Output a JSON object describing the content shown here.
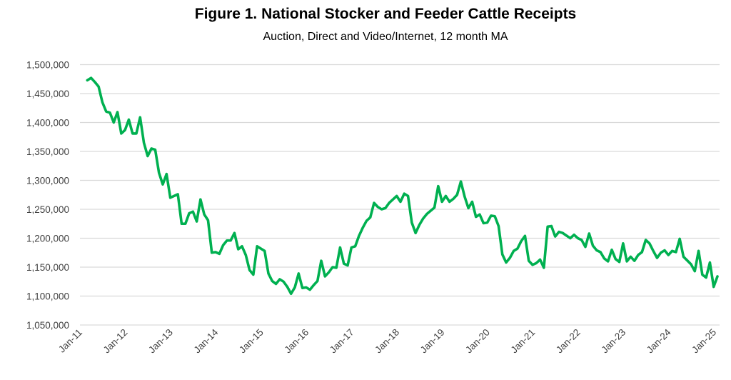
{
  "chart_data": {
    "type": "line",
    "title": "Figure 1. National Stocker and Feeder Cattle Receipts",
    "subtitle": "Auction, Direct and Video/Internet, 12 month MA",
    "xlabel": "",
    "ylabel": "",
    "ylim": [
      1050000,
      1500000
    ],
    "y_ticks": [
      "1,050,000",
      "1,100,000",
      "1,150,000",
      "1,200,000",
      "1,250,000",
      "1,300,000",
      "1,350,000",
      "1,400,000",
      "1,450,000",
      "1,500,000"
    ],
    "x_ticks": [
      "Jan-11",
      "Jan-12",
      "Jan-13",
      "Jan-14",
      "Jan-15",
      "Jan-16",
      "Jan-17",
      "Jan-18",
      "Jan-19",
      "Jan-20",
      "Jan-21",
      "Jan-22",
      "Jan-23",
      "Jan-24",
      "Jan-25"
    ],
    "xlim": [
      "2011-01",
      "2025-01"
    ],
    "grid": "horizontal",
    "legend": "none",
    "line_color": "#00b050",
    "series": [
      {
        "dates": [
          "2011-02",
          "2011-03",
          "2011-04",
          "2011-05",
          "2011-06",
          "2011-07",
          "2011-08",
          "2011-09",
          "2011-10",
          "2011-11",
          "2011-12",
          "2012-01",
          "2012-02",
          "2012-03",
          "2012-04",
          "2012-05",
          "2012-06",
          "2012-07",
          "2012-08",
          "2012-09",
          "2012-10",
          "2012-11",
          "2012-12",
          "2013-02",
          "2013-03",
          "2013-04",
          "2013-05",
          "2013-06",
          "2013-07",
          "2013-08",
          "2013-09",
          "2013-10",
          "2013-11",
          "2013-12",
          "2014-01",
          "2014-02",
          "2014-03",
          "2014-04",
          "2014-05",
          "2014-06",
          "2014-07",
          "2014-08",
          "2014-09",
          "2014-10",
          "2014-11",
          "2015-01",
          "2015-02",
          "2015-03",
          "2015-04",
          "2015-05",
          "2015-06",
          "2015-07",
          "2015-08",
          "2015-09",
          "2015-10",
          "2015-11",
          "2015-12",
          "2016-01",
          "2016-02",
          "2016-03",
          "2016-04",
          "2016-05",
          "2016-06",
          "2016-07",
          "2016-08",
          "2016-09",
          "2016-10",
          "2016-11",
          "2016-12",
          "2017-01",
          "2017-02",
          "2017-03",
          "2017-04",
          "2017-05",
          "2017-06",
          "2017-07",
          "2017-08",
          "2017-09",
          "2017-10",
          "2017-11",
          "2017-12",
          "2018-01",
          "2018-02",
          "2018-03",
          "2018-04",
          "2018-05",
          "2018-06",
          "2018-07",
          "2018-08",
          "2018-10",
          "2018-11",
          "2018-12",
          "2019-01",
          "2019-02",
          "2019-03",
          "2019-04",
          "2019-05",
          "2019-06",
          "2019-07",
          "2019-08",
          "2019-09",
          "2019-10",
          "2019-11",
          "2019-12",
          "2020-01",
          "2020-02",
          "2020-03",
          "2020-04",
          "2020-05",
          "2020-06",
          "2020-07",
          "2020-08",
          "2020-09",
          "2020-10",
          "2020-11",
          "2020-12",
          "2021-01",
          "2021-02",
          "2021-03",
          "2021-04",
          "2021-05",
          "2021-06",
          "2021-07",
          "2021-08",
          "2021-10",
          "2021-11",
          "2021-12",
          "2022-01",
          "2022-02",
          "2022-03",
          "2022-04",
          "2022-05",
          "2022-06",
          "2022-07",
          "2022-08",
          "2022-09",
          "2022-10",
          "2022-11",
          "2022-12",
          "2023-01",
          "2023-02",
          "2023-03",
          "2023-04",
          "2023-05",
          "2023-06",
          "2023-07",
          "2023-08",
          "2023-09",
          "2023-10",
          "2023-11",
          "2023-12",
          "2024-01",
          "2024-02",
          "2024-03",
          "2024-04",
          "2024-06",
          "2024-07",
          "2024-08",
          "2024-09",
          "2024-10",
          "2024-11",
          "2024-12",
          "2025-01"
        ],
        "values": [
          1473000,
          1477000,
          1470000,
          1462000,
          1435000,
          1419000,
          1417000,
          1400000,
          1418000,
          1381000,
          1387000,
          1405000,
          1381000,
          1381000,
          1409000,
          1365000,
          1342000,
          1355000,
          1353000,
          1313000,
          1293000,
          1311000,
          1270000,
          1276000,
          1225000,
          1225000,
          1243000,
          1246000,
          1229000,
          1267000,
          1241000,
          1231000,
          1175000,
          1176000,
          1173000,
          1188000,
          1196000,
          1196000,
          1209000,
          1181000,
          1186000,
          1171000,
          1145000,
          1137000,
          1186000,
          1178000,
          1139000,
          1126000,
          1121000,
          1129000,
          1125000,
          1116000,
          1104000,
          1115000,
          1139000,
          1114000,
          1115000,
          1111000,
          1119000,
          1126000,
          1161000,
          1134000,
          1141000,
          1150000,
          1149000,
          1184000,
          1156000,
          1153000,
          1184000,
          1186000,
          1204000,
          1218000,
          1230000,
          1236000,
          1261000,
          1254000,
          1250000,
          1252000,
          1261000,
          1267000,
          1273000,
          1263000,
          1277000,
          1273000,
          1227000,
          1209000,
          1223000,
          1234000,
          1242000,
          1253000,
          1290000,
          1263000,
          1273000,
          1263000,
          1268000,
          1275000,
          1298000,
          1272000,
          1252000,
          1263000,
          1237000,
          1241000,
          1226000,
          1227000,
          1239000,
          1238000,
          1221000,
          1172000,
          1158000,
          1166000,
          1178000,
          1182000,
          1195000,
          1204000,
          1161000,
          1154000,
          1157000,
          1163000,
          1149000,
          1220000,
          1221000,
          1203000,
          1211000,
          1209000,
          1200000,
          1206000,
          1200000,
          1197000,
          1185000,
          1208000,
          1187000,
          1179000,
          1176000,
          1165000,
          1160000,
          1180000,
          1164000,
          1159000,
          1191000,
          1160000,
          1168000,
          1161000,
          1171000,
          1176000,
          1197000,
          1191000,
          1178000,
          1166000,
          1175000,
          1179000,
          1171000,
          1178000,
          1176000,
          1199000,
          1168000,
          1155000,
          1143000,
          1178000,
          1137000,
          1132000,
          1158000,
          1116000,
          1134000
        ]
      }
    ]
  }
}
